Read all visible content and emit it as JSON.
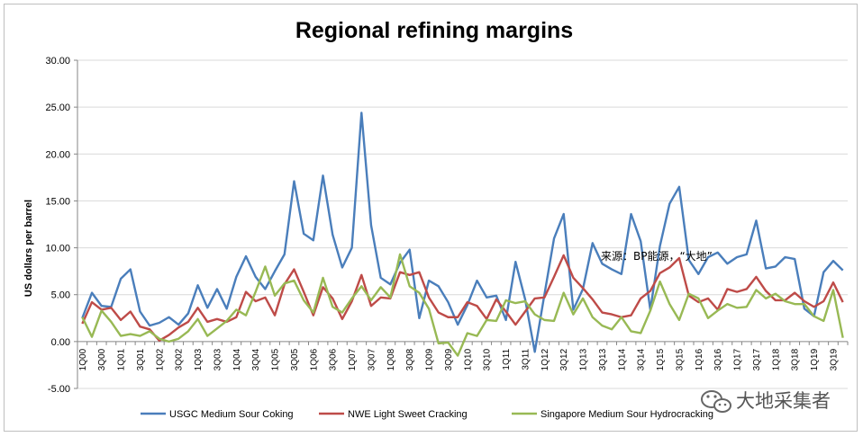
{
  "chart_data": {
    "type": "line",
    "title": "Regional refining margins",
    "xlabel": "",
    "ylabel": "US dollars per barrel",
    "ylim": [
      -5,
      30
    ],
    "yticks": [
      -5,
      0,
      5,
      10,
      15,
      20,
      25,
      30
    ],
    "ytick_labels": [
      "-5.00",
      "0.00",
      "5.00",
      "10.00",
      "15.00",
      "20.00",
      "25.00",
      "30.00"
    ],
    "categories": [
      "1Q00",
      "2Q00",
      "3Q00",
      "4Q00",
      "1Q01",
      "2Q01",
      "3Q01",
      "4Q01",
      "1Q02",
      "2Q02",
      "3Q02",
      "4Q02",
      "1Q03",
      "2Q03",
      "3Q03",
      "4Q03",
      "1Q04",
      "2Q04",
      "3Q04",
      "4Q04",
      "1Q05",
      "2Q05",
      "3Q05",
      "4Q05",
      "1Q06",
      "2Q06",
      "3Q06",
      "4Q06",
      "1Q07",
      "2Q07",
      "3Q07",
      "4Q07",
      "1Q08",
      "2Q08",
      "3Q08",
      "4Q08",
      "1Q09",
      "2Q09",
      "3Q09",
      "4Q09",
      "1Q10",
      "2Q10",
      "3Q10",
      "4Q10",
      "1Q11",
      "2Q11",
      "3Q11",
      "4Q11",
      "1Q12",
      "2Q12",
      "3Q12",
      "4Q12",
      "1Q13",
      "2Q13",
      "3Q13",
      "4Q13",
      "1Q14",
      "2Q14",
      "3Q14",
      "4Q14",
      "1Q15",
      "2Q15",
      "3Q15",
      "4Q15",
      "1Q16",
      "2Q16",
      "3Q16",
      "4Q16",
      "1Q17",
      "2Q17",
      "3Q17",
      "4Q17",
      "1Q18",
      "2Q18",
      "3Q18",
      "4Q18",
      "1Q19",
      "2Q19",
      "3Q19",
      "4Q19"
    ],
    "x_tick_labels": [
      "1Q00",
      "3Q00",
      "1Q01",
      "3Q01",
      "1Q02",
      "3Q02",
      "1Q03",
      "3Q03",
      "1Q04",
      "3Q04",
      "1Q05",
      "3Q05",
      "1Q06",
      "3Q06",
      "1Q07",
      "3Q07",
      "1Q08",
      "3Q08",
      "1Q09",
      "3Q09",
      "1Q10",
      "3Q10",
      "1Q11",
      "3Q11",
      "1Q12",
      "3Q12",
      "1Q13",
      "3Q13",
      "1Q14",
      "3Q14",
      "1Q15",
      "3Q15",
      "1Q16",
      "3Q16",
      "1Q17",
      "3Q17",
      "1Q18",
      "3Q18",
      "1Q19",
      "3Q19"
    ],
    "series": [
      {
        "name": "USGC Medium Sour Coking",
        "color": "#4a7ebb",
        "values": [
          2.5,
          5.2,
          3.8,
          3.7,
          6.7,
          7.7,
          3.2,
          1.7,
          2.0,
          2.6,
          1.8,
          3.0,
          6.0,
          3.6,
          5.6,
          3.5,
          6.9,
          9.1,
          6.9,
          5.6,
          7.5,
          9.3,
          17.1,
          11.5,
          10.8,
          17.7,
          11.4,
          7.9,
          10.0,
          24.4,
          12.4,
          6.8,
          6.1,
          8.4,
          9.8,
          2.5,
          6.5,
          5.9,
          4.2,
          1.8,
          3.9,
          6.5,
          4.7,
          4.9,
          2.3,
          8.5,
          4.5,
          -1.1,
          5.0,
          11.0,
          13.6,
          3.4,
          5.6,
          10.5,
          8.3,
          7.7,
          7.2,
          13.6,
          10.7,
          3.4,
          10.2,
          14.7,
          16.5,
          8.7,
          7.2,
          9.0,
          9.5,
          8.3,
          9.0,
          9.3,
          12.9,
          7.8,
          8.0,
          9.0,
          8.8,
          3.5,
          2.7,
          7.4,
          8.6,
          7.6
        ]
      },
      {
        "name": "NWE Light Sweet Cracking",
        "color": "#be4b48",
        "values": [
          1.9,
          4.2,
          3.4,
          3.6,
          2.3,
          3.2,
          1.6,
          1.3,
          0.1,
          0.7,
          1.5,
          2.1,
          3.6,
          2.1,
          2.4,
          2.1,
          2.6,
          5.3,
          4.3,
          4.7,
          2.8,
          6.1,
          7.7,
          5.3,
          2.8,
          5.8,
          4.6,
          2.4,
          4.3,
          7.1,
          3.8,
          4.7,
          4.6,
          7.4,
          7.1,
          7.4,
          4.7,
          3.1,
          2.6,
          2.6,
          4.2,
          3.8,
          2.4,
          4.5,
          3.2,
          1.8,
          3.2,
          4.6,
          4.7,
          6.9,
          9.2,
          6.8,
          5.7,
          4.5,
          3.1,
          2.9,
          2.6,
          2.8,
          4.6,
          5.4,
          7.3,
          7.9,
          8.9,
          4.9,
          4.2,
          4.6,
          3.4,
          5.6,
          5.3,
          5.6,
          6.9,
          5.4,
          4.4,
          4.4,
          5.2,
          4.3,
          3.7,
          4.3,
          6.3,
          4.2
        ]
      },
      {
        "name": "Singapore Medium Sour Hydrocracking",
        "color": "#98b954",
        "values": [
          2.6,
          0.5,
          3.3,
          2.1,
          0.6,
          0.8,
          0.6,
          1.1,
          0.3,
          0.0,
          0.3,
          1.1,
          2.4,
          0.6,
          1.4,
          2.2,
          3.4,
          2.8,
          5.3,
          8.0,
          4.9,
          6.2,
          6.5,
          4.4,
          3.1,
          6.8,
          3.7,
          3.1,
          4.6,
          5.9,
          4.4,
          5.8,
          4.7,
          9.3,
          5.9,
          5.2,
          3.5,
          -0.2,
          -0.1,
          -1.5,
          0.9,
          0.6,
          2.3,
          2.2,
          4.4,
          4.1,
          4.3,
          2.9,
          2.3,
          2.2,
          5.2,
          2.9,
          4.6,
          2.6,
          1.7,
          1.3,
          2.6,
          1.1,
          0.9,
          3.3,
          6.4,
          4.0,
          2.3,
          5.1,
          4.6,
          2.5,
          3.3,
          4.0,
          3.6,
          3.7,
          5.5,
          4.6,
          5.1,
          4.3,
          4.0,
          4.0,
          2.7,
          2.2,
          5.5,
          0.4
        ]
      }
    ],
    "legend": "bottom",
    "grid": true,
    "annotation": "来源：BP能源，“大地”",
    "watermark": "大地采集者"
  }
}
